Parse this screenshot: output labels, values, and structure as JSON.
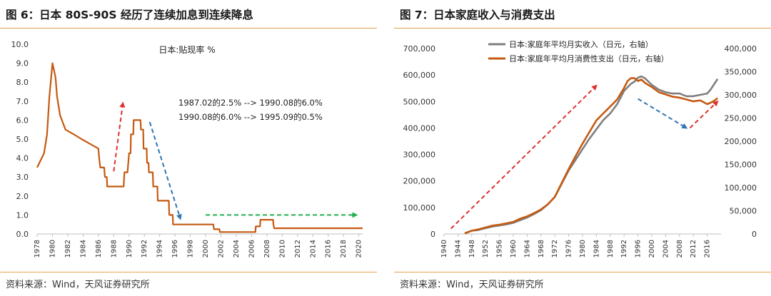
{
  "left": {
    "title": "图 6：日本 80S-90S 经历了连续加息到连续降息",
    "source": "资料来源：Wind，天风证券研究所"
  },
  "right": {
    "title": "图 7：日本家庭收入与消费支出",
    "source": "资料来源：Wind，天风证券研究所"
  },
  "chart_data": [
    {
      "type": "line",
      "legend": [
        "日本:贴现率 %"
      ],
      "legend_position": "top-center",
      "annotations": [
        "1987.02的2.5% --> 1990.08的6.0%",
        "1990.08的6.0% --> 1995.09的0.5%"
      ],
      "xlim": [
        1978,
        2020.5
      ],
      "ylim": [
        0,
        10
      ],
      "x_ticks": [
        "1978",
        "1980",
        "1982",
        "1984",
        "1986",
        "1988",
        "1990",
        "1992",
        "1994",
        "1996",
        "1998",
        "2000",
        "2002",
        "2004",
        "2006",
        "2008",
        "2010",
        "2012",
        "2014",
        "2016",
        "2018",
        "2020"
      ],
      "y_ticks": [
        "0.0",
        "1.0",
        "2.0",
        "3.0",
        "4.0",
        "5.0",
        "6.0",
        "7.0",
        "8.0",
        "9.0",
        "10.0"
      ],
      "grid": false,
      "series": [
        {
          "name": "日本:贴现率 %",
          "color": "#c55a11",
          "points": [
            [
              1978.0,
              3.5
            ],
            [
              1978.9,
              4.25
            ],
            [
              1979.3,
              5.25
            ],
            [
              1979.6,
              7.25
            ],
            [
              1980.0,
              9.0
            ],
            [
              1980.4,
              8.25
            ],
            [
              1980.6,
              7.25
            ],
            [
              1981.0,
              6.25
            ],
            [
              1981.7,
              5.5
            ],
            [
              1983.0,
              5.2
            ],
            [
              1983.8,
              5.0
            ],
            [
              1986.0,
              4.5
            ],
            [
              1986.1,
              4.0
            ],
            [
              1986.25,
              3.5
            ],
            [
              1986.75,
              3.5
            ],
            [
              1986.85,
              3.0
            ],
            [
              1987.1,
              3.0
            ],
            [
              1987.15,
              2.5
            ],
            [
              1989.3,
              2.5
            ],
            [
              1989.4,
              3.25
            ],
            [
              1989.8,
              3.25
            ],
            [
              1989.9,
              3.75
            ],
            [
              1990.0,
              4.25
            ],
            [
              1990.2,
              4.25
            ],
            [
              1990.25,
              5.25
            ],
            [
              1990.55,
              5.25
            ],
            [
              1990.6,
              6.0
            ],
            [
              1991.5,
              6.0
            ],
            [
              1991.55,
              5.5
            ],
            [
              1991.85,
              5.5
            ],
            [
              1991.9,
              4.5
            ],
            [
              1992.3,
              4.5
            ],
            [
              1992.35,
              3.75
            ],
            [
              1992.55,
              3.75
            ],
            [
              1992.6,
              3.25
            ],
            [
              1993.1,
              3.25
            ],
            [
              1993.15,
              2.5
            ],
            [
              1993.7,
              2.5
            ],
            [
              1993.75,
              1.75
            ],
            [
              1995.2,
              1.75
            ],
            [
              1995.25,
              1.0
            ],
            [
              1995.7,
              1.0
            ],
            [
              1995.75,
              0.5
            ],
            [
              2001.0,
              0.5
            ],
            [
              2001.1,
              0.25
            ],
            [
              2001.8,
              0.25
            ],
            [
              2001.85,
              0.1
            ],
            [
              2006.5,
              0.1
            ],
            [
              2006.55,
              0.4
            ],
            [
              2007.1,
              0.4
            ],
            [
              2007.15,
              0.75
            ],
            [
              2008.8,
              0.75
            ],
            [
              2008.85,
              0.5
            ],
            [
              2008.95,
              0.3
            ],
            [
              2020.5,
              0.3
            ]
          ]
        }
      ],
      "arrows": [
        {
          "color": "#e03030",
          "from": [
            1988.0,
            3.3
          ],
          "to": [
            1989.2,
            6.9
          ]
        },
        {
          "color": "#2e75b6",
          "from": [
            1992.7,
            5.9
          ],
          "to": [
            1996.7,
            0.8
          ]
        },
        {
          "color": "#22b050",
          "from": [
            2000.0,
            1.0
          ],
          "to": [
            2019.7,
            1.0
          ]
        }
      ]
    },
    {
      "type": "line",
      "legend": [
        "日本:家庭年平均月实收入（日元，右轴）",
        "日本:家庭年平均月消费性支出（日元，右轴）"
      ],
      "legend_position": "top-center",
      "xlim": [
        1940,
        2020
      ],
      "ylim_left": [
        0,
        700000
      ],
      "ylim_right": [
        0,
        400000
      ],
      "x_ticks": [
        "1940",
        "1944",
        "1948",
        "1952",
        "1956",
        "1960",
        "1964",
        "1968",
        "1972",
        "1976",
        "1980",
        "1984",
        "1988",
        "1992",
        "1996",
        "2000",
        "2004",
        "2008",
        "2012",
        "2016"
      ],
      "y_ticks_left": [
        "0",
        "100,000",
        "200,000",
        "300,000",
        "400,000",
        "500,000",
        "600,000",
        "700,000"
      ],
      "y_ticks_right": [
        "0",
        "50,000",
        "100,000",
        "150,000",
        "200,000",
        "250,000",
        "300,000",
        "350,000",
        "400,000"
      ],
      "grid": false,
      "series": [
        {
          "name": "日本:家庭年平均月实收入（日元，右轴）",
          "color": "#7f7f7f",
          "axis": "left",
          "points": [
            [
              1946,
              3000
            ],
            [
              1948,
              12000
            ],
            [
              1950,
              15000
            ],
            [
              1952,
              22000
            ],
            [
              1954,
              28000
            ],
            [
              1956,
              32000
            ],
            [
              1958,
              36000
            ],
            [
              1960,
              42000
            ],
            [
              1962,
              52000
            ],
            [
              1964,
              62000
            ],
            [
              1966,
              75000
            ],
            [
              1968,
              90000
            ],
            [
              1970,
              112000
            ],
            [
              1972,
              140000
            ],
            [
              1974,
              190000
            ],
            [
              1976,
              240000
            ],
            [
              1978,
              280000
            ],
            [
              1980,
              320000
            ],
            [
              1982,
              360000
            ],
            [
              1984,
              395000
            ],
            [
              1986,
              430000
            ],
            [
              1988,
              455000
            ],
            [
              1990,
              490000
            ],
            [
              1992,
              540000
            ],
            [
              1994,
              567000
            ],
            [
              1995,
              575000
            ],
            [
              1996,
              590000
            ],
            [
              1997,
              595000
            ],
            [
              1998,
              588000
            ],
            [
              2000,
              563000
            ],
            [
              2002,
              545000
            ],
            [
              2004,
              535000
            ],
            [
              2006,
              530000
            ],
            [
              2008,
              530000
            ],
            [
              2010,
              520000
            ],
            [
              2012,
              520000
            ],
            [
              2014,
              525000
            ],
            [
              2016,
              530000
            ],
            [
              2017,
              545000
            ],
            [
              2018,
              565000
            ],
            [
              2019,
              585000
            ]
          ]
        },
        {
          "name": "日本:家庭年平均月消费性支出（日元，右轴）",
          "color": "#c55a11",
          "axis": "right",
          "points": [
            [
              1946,
              1000
            ],
            [
              1948,
              7000
            ],
            [
              1950,
              10000
            ],
            [
              1952,
              14000
            ],
            [
              1954,
              18000
            ],
            [
              1956,
              20000
            ],
            [
              1958,
              23000
            ],
            [
              1960,
              26000
            ],
            [
              1962,
              33000
            ],
            [
              1964,
              38000
            ],
            [
              1966,
              45000
            ],
            [
              1968,
              53000
            ],
            [
              1970,
              64000
            ],
            [
              1972,
              80000
            ],
            [
              1974,
              110000
            ],
            [
              1976,
              140000
            ],
            [
              1978,
              168000
            ],
            [
              1980,
              195000
            ],
            [
              1982,
              220000
            ],
            [
              1984,
              245000
            ],
            [
              1986,
              260000
            ],
            [
              1988,
              275000
            ],
            [
              1990,
              290000
            ],
            [
              1992,
              315000
            ],
            [
              1993,
              330000
            ],
            [
              1994,
              336000
            ],
            [
              1995,
              336000
            ],
            [
              1996,
              330000
            ],
            [
              1997,
              333000
            ],
            [
              1998,
              326000
            ],
            [
              2000,
              317000
            ],
            [
              2002,
              306000
            ],
            [
              2004,
              301000
            ],
            [
              2006,
              296000
            ],
            [
              2008,
              294000
            ],
            [
              2010,
              290000
            ],
            [
              2012,
              286000
            ],
            [
              2014,
              288000
            ],
            [
              2015,
              284000
            ],
            [
              2016,
              280000
            ],
            [
              2017,
              283000
            ],
            [
              2018,
              287000
            ],
            [
              2019,
              293000
            ]
          ]
        }
      ],
      "arrows": [
        {
          "color": "#e03030",
          "from": [
            1942,
            20000
          ],
          "to": [
            1984,
            560000
          ]
        },
        {
          "color": "#2e75b6",
          "from": [
            1996,
            510000
          ],
          "to": [
            2010,
            400000
          ]
        },
        {
          "color": "#e03030",
          "from": [
            2011,
            400000
          ],
          "to": [
            2019,
            500000
          ]
        }
      ]
    }
  ]
}
